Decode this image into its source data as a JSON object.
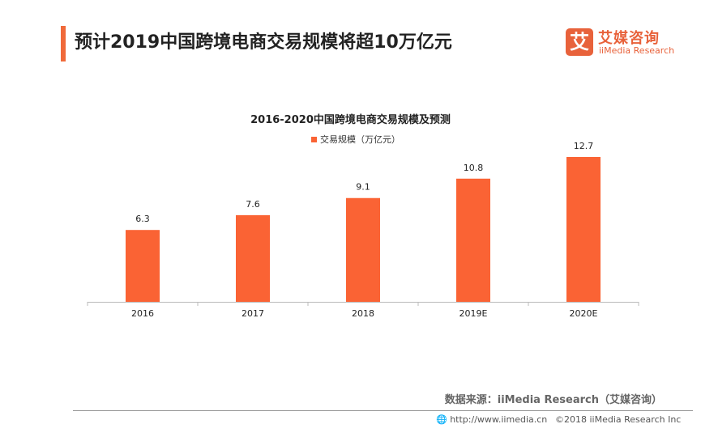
{
  "header": {
    "title": "预计2019中国跨境电商交易规模将超10万亿元",
    "logo_mark": "艾",
    "logo_cn": "艾媒咨询",
    "logo_en": "iiMedia Research"
  },
  "chart_data": {
    "type": "bar",
    "title": "2016-2020中国跨境电商交易规模及预测",
    "categories": [
      "2016",
      "2017",
      "2018",
      "2019E",
      "2020E"
    ],
    "series": [
      {
        "name": "交易规模（万亿元）",
        "values": [
          6.3,
          7.6,
          9.1,
          10.8,
          12.7
        ],
        "color": "#fa6334"
      }
    ],
    "xlabel": "",
    "ylabel": "",
    "ylim": [
      0,
      12.7
    ],
    "grid": false,
    "legend": "top",
    "data_labels": true
  },
  "footer": {
    "source": "数据来源：iiMedia Research（艾媒咨询）",
    "url": "http://www.iimedia.cn",
    "copyright": "©2018  iiMedia Research  Inc"
  }
}
